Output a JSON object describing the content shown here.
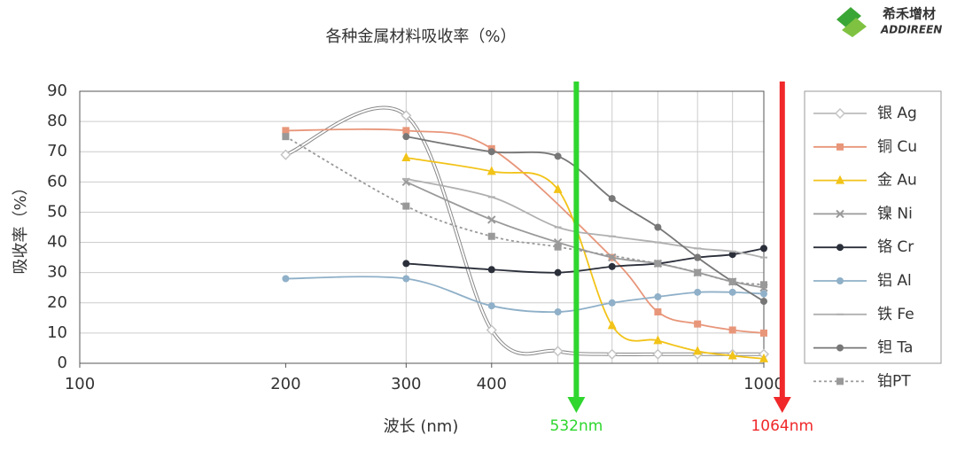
{
  "logo": {
    "name": "希禾增材",
    "subtitle": "ADDIREEN"
  },
  "chart_data": {
    "type": "line",
    "title": "各种金属材料吸收率（%）",
    "xlabel": "波长 (nm)",
    "ylabel": "吸收率（%）",
    "xscale": "log",
    "xlim": [
      100,
      1000
    ],
    "ylim": [
      0,
      90
    ],
    "xticks": [
      100,
      200,
      300,
      400,
      1000
    ],
    "yticks": [
      0,
      10,
      20,
      30,
      40,
      50,
      60,
      70,
      80,
      90
    ],
    "xgrid": [
      300,
      400,
      500,
      600,
      700,
      800,
      900,
      1000
    ],
    "grid": true,
    "smooth": true,
    "legend": "right",
    "series": [
      {
        "name": "银 Ag",
        "color": "#c4c4c4",
        "marker": "diamond",
        "x": [
          200,
          300,
          400,
          500,
          600,
          700,
          800,
          900,
          1000
        ],
        "values": [
          69,
          82,
          11,
          4,
          3,
          3,
          3,
          3,
          3
        ]
      },
      {
        "name": "铜 Cu",
        "color": "#e8967a",
        "marker": "square",
        "x": [
          200,
          300,
          400,
          600,
          700,
          800,
          900,
          1000
        ],
        "values": [
          77,
          77,
          71,
          35,
          17,
          13,
          11,
          10
        ]
      },
      {
        "name": "金 Au",
        "color": "#f2c318",
        "marker": "triangle",
        "x": [
          300,
          400,
          500,
          600,
          700,
          800,
          900,
          1000
        ],
        "values": [
          68,
          63.5,
          57.5,
          12.5,
          7.5,
          4,
          2.5,
          1.5
        ]
      },
      {
        "name": "镍 Ni",
        "color": "#9a9a9a",
        "marker": "cross",
        "x": [
          300,
          400,
          500,
          600,
          700,
          800,
          900,
          1000
        ],
        "values": [
          60,
          47.5,
          40,
          35,
          33,
          30,
          27,
          25
        ]
      },
      {
        "name": "铬 Cr",
        "color": "#2b2f3a",
        "marker": "circle",
        "x": [
          300,
          400,
          500,
          600,
          700,
          800,
          900,
          1000
        ],
        "values": [
          33,
          31,
          30,
          32,
          33,
          35,
          36,
          38
        ]
      },
      {
        "name": "铝 Al",
        "color": "#8fb0c8",
        "marker": "circle",
        "x": [
          200,
          300,
          400,
          500,
          600,
          700,
          800,
          900,
          1000
        ],
        "values": [
          28,
          28,
          19,
          17,
          20,
          22,
          23.5,
          23.5,
          23
        ]
      },
      {
        "name": "铁 Fe",
        "color": "#b0b0b0",
        "marker": "dash",
        "x": [
          300,
          400,
          500,
          600,
          700,
          800,
          900,
          1000
        ],
        "values": [
          61,
          55,
          45,
          42,
          40,
          38,
          37,
          35
        ]
      },
      {
        "name": "钽 Ta",
        "color": "#777777",
        "marker": "circle",
        "x": [
          300,
          400,
          500,
          600,
          700,
          800,
          900,
          1000
        ],
        "values": [
          75,
          70,
          68.5,
          54.5,
          45,
          35,
          27,
          20.5
        ]
      },
      {
        "name": "铂PT",
        "color": "#999999",
        "marker": "square",
        "dashed": true,
        "x": [
          200,
          300,
          400,
          500,
          700,
          800,
          900,
          1000
        ],
        "values": [
          75,
          52,
          42,
          38.5,
          33,
          30,
          27,
          26
        ]
      }
    ],
    "annotations": [
      {
        "text": "532nm",
        "x": 532,
        "color": "#2ed62e"
      },
      {
        "text": "1064nm",
        "x": 1064,
        "color": "#f0282a"
      }
    ]
  }
}
